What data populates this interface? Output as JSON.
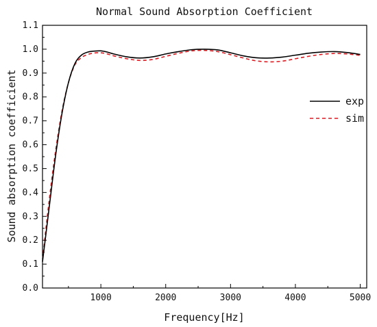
{
  "chart_data": {
    "type": "line",
    "title": "Normal Sound Absorption Coefficient",
    "xlabel": "Frequency[Hz]",
    "ylabel": "Sound absorption coefficient",
    "xlim": [
      100,
      5100
    ],
    "ylim": [
      0,
      1.1
    ],
    "x_ticks": [
      1000,
      2000,
      3000,
      4000,
      5000
    ],
    "x_tick_labels": [
      "1000",
      "2000",
      "3000",
      "4000",
      "5000"
    ],
    "y_ticks": [
      0,
      0.1,
      0.2,
      0.3,
      0.4,
      0.5,
      0.6,
      0.7,
      0.8,
      0.9,
      1.0,
      1.1
    ],
    "y_tick_labels": [
      "0.0",
      "0.1",
      "0.2",
      "0.3",
      "0.4",
      "0.5",
      "0.6",
      "0.7",
      "0.8",
      "0.9",
      "1.0",
      "1.1"
    ],
    "grid": false,
    "legend_position": "right",
    "series": [
      {
        "name": "exp",
        "color": "#000000",
        "style": "solid",
        "x": [
          100,
          200,
          300,
          400,
          500,
          600,
          700,
          800,
          900,
          1000,
          1100,
          1200,
          1400,
          1600,
          1800,
          2000,
          2200,
          2400,
          2600,
          2800,
          3000,
          3200,
          3400,
          3600,
          3800,
          4000,
          4200,
          4400,
          4600,
          4800,
          5000
        ],
        "y": [
          0.11,
          0.33,
          0.55,
          0.73,
          0.86,
          0.94,
          0.975,
          0.988,
          0.992,
          0.993,
          0.988,
          0.98,
          0.968,
          0.963,
          0.968,
          0.98,
          0.99,
          0.998,
          1.0,
          0.997,
          0.985,
          0.972,
          0.964,
          0.963,
          0.967,
          0.975,
          0.983,
          0.988,
          0.99,
          0.986,
          0.978
        ]
      },
      {
        "name": "sim",
        "color": "#e8141a",
        "style": "dashed",
        "x": [
          100,
          200,
          300,
          400,
          500,
          600,
          700,
          800,
          900,
          1000,
          1100,
          1200,
          1400,
          1600,
          1800,
          2000,
          2200,
          2400,
          2600,
          2800,
          3000,
          3200,
          3400,
          3600,
          3800,
          4000,
          4200,
          4400,
          4600,
          4800,
          5000
        ],
        "y": [
          0.12,
          0.36,
          0.57,
          0.74,
          0.86,
          0.935,
          0.965,
          0.978,
          0.984,
          0.985,
          0.98,
          0.972,
          0.96,
          0.953,
          0.957,
          0.97,
          0.983,
          0.993,
          0.995,
          0.99,
          0.977,
          0.963,
          0.951,
          0.947,
          0.95,
          0.96,
          0.97,
          0.978,
          0.982,
          0.98,
          0.974
        ]
      }
    ]
  }
}
